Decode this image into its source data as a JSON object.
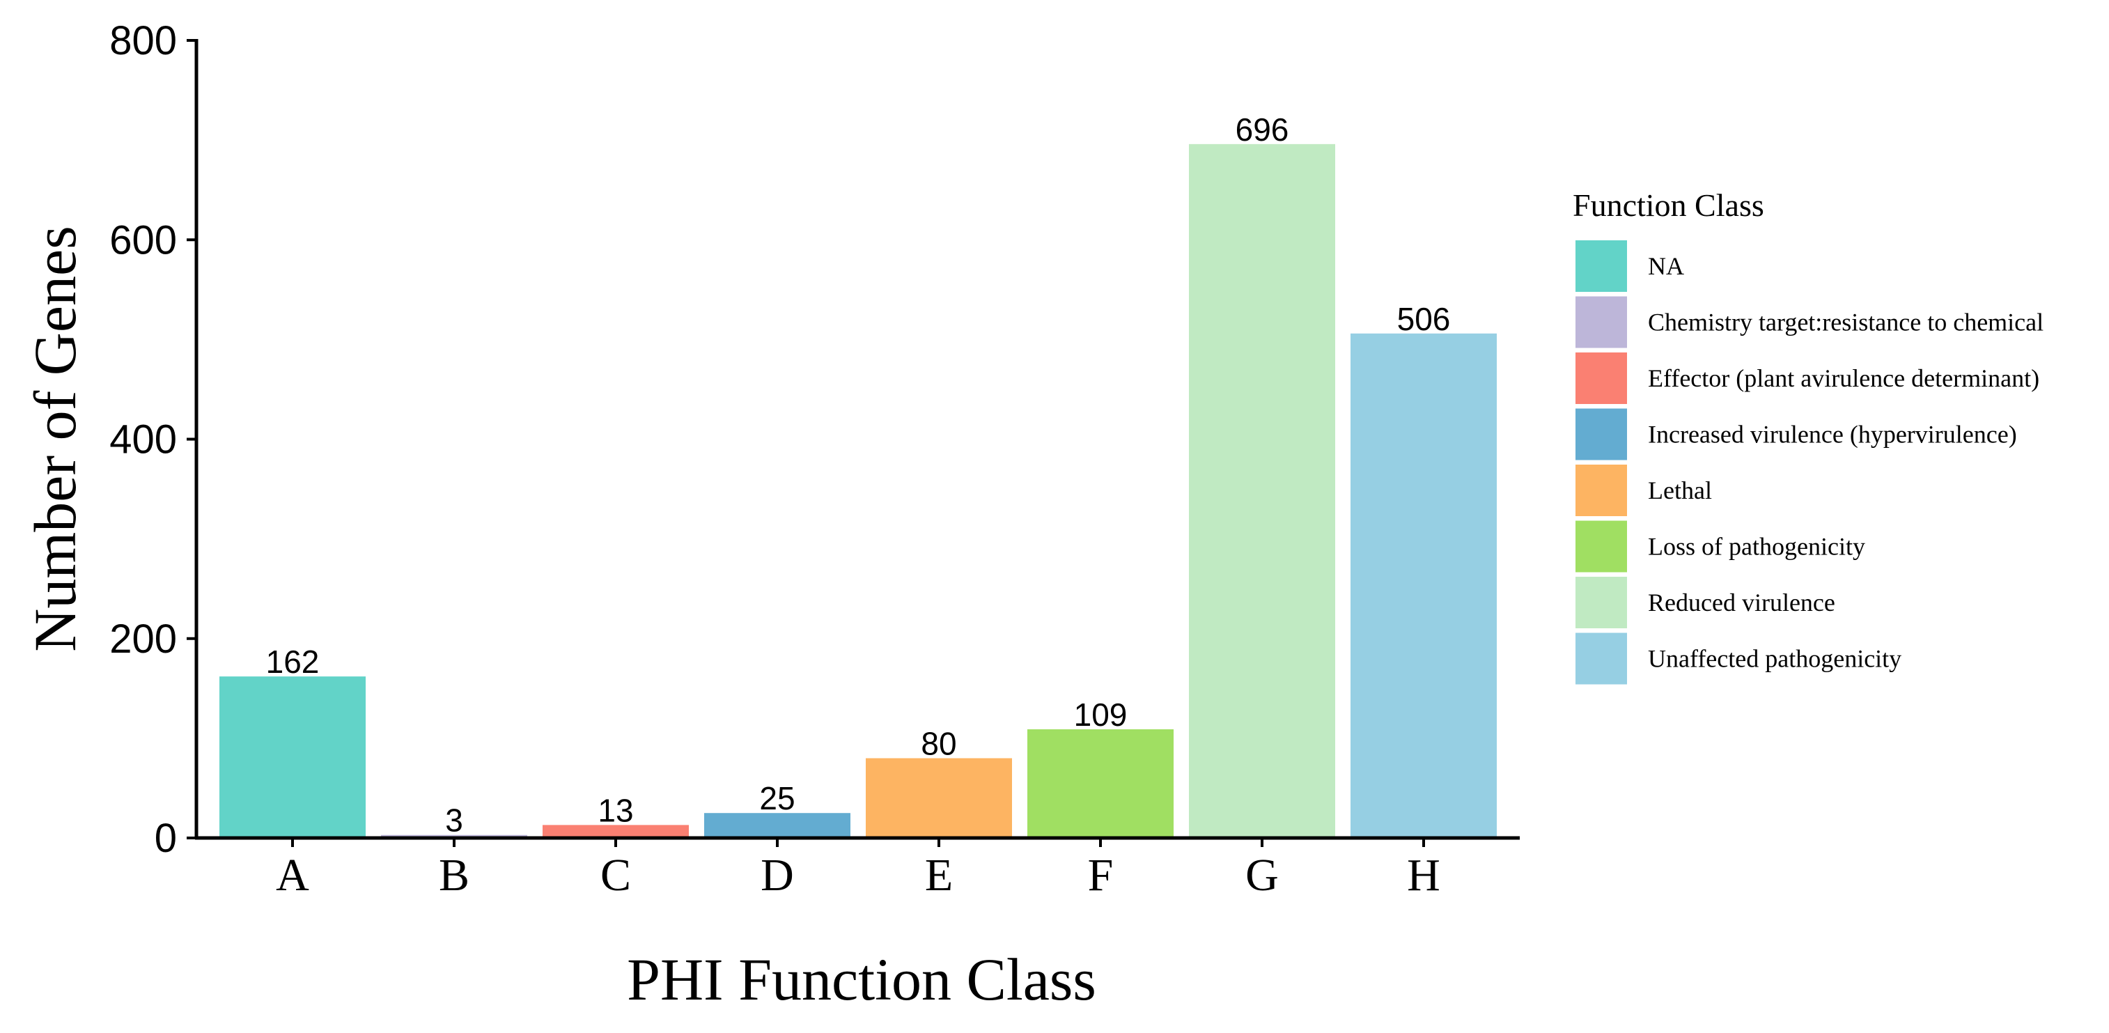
{
  "chart_data": {
    "type": "bar",
    "categories": [
      "A",
      "B",
      "C",
      "D",
      "E",
      "F",
      "G",
      "H"
    ],
    "values": [
      162,
      3,
      13,
      25,
      80,
      109,
      696,
      506
    ],
    "colors": [
      "#62d3c8",
      "#bdb6d9",
      "#fa8072",
      "#63acd1",
      "#fdb462",
      "#a0df62",
      "#c0eac2",
      "#96cfe3"
    ],
    "xlabel": "PHI Function Class",
    "ylabel": "Number of Genes",
    "ylim": [
      0,
      800
    ],
    "yticks": [
      0,
      200,
      400,
      600,
      800
    ],
    "grid": false,
    "legend": {
      "title": "Function Class",
      "placement": "right",
      "entries": [
        {
          "label": "NA",
          "color": "#62d3c8"
        },
        {
          "label": "Chemistry target:resistance to chemical",
          "color": "#bdb6d9"
        },
        {
          "label": "Effector (plant avirulence determinant)",
          "color": "#fa8072"
        },
        {
          "label": "Increased virulence (hypervirulence)",
          "color": "#63acd1"
        },
        {
          "label": "Lethal",
          "color": "#fdb462"
        },
        {
          "label": "Loss of pathogenicity",
          "color": "#a0df62"
        },
        {
          "label": "Reduced virulence",
          "color": "#c0eac2"
        },
        {
          "label": "Unaffected pathogenicity",
          "color": "#96cfe3"
        }
      ]
    }
  }
}
